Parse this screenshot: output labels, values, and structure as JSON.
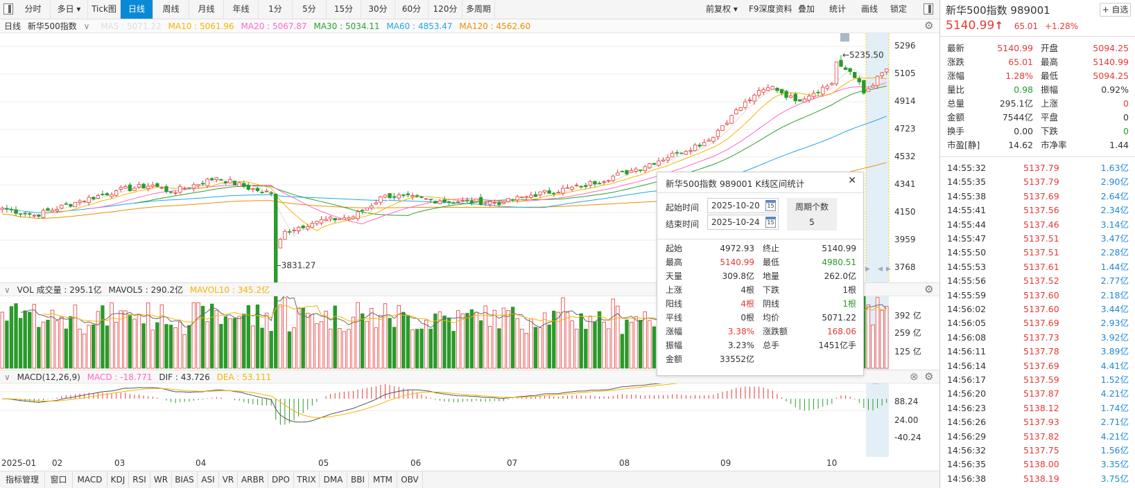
{
  "toolbar": {
    "periods": [
      "分时",
      "多日 ▾",
      "Tick图",
      "日线",
      "周线",
      "月线",
      "年线",
      "1分",
      "5分",
      "15分",
      "30分",
      "60分",
      "120分",
      "多周期"
    ],
    "active": "日线",
    "right": [
      "前复权 ▾",
      "F9深度资料",
      "叠加",
      "统计",
      "画线",
      "锁定"
    ]
  },
  "legend": {
    "period": "日线",
    "index_name": "新华500指数",
    "ma5": "MA5 : 5071.22",
    "ma10": "MA10 : 5061.96",
    "ma20": "MA20 : 5067.87",
    "ma30": "MA30 : 5034.11",
    "ma60": "MA60 : 4853.47",
    "ma120": "MA120 : 4562.60"
  },
  "colors": {
    "up": "#e53935",
    "down": "#2a9a2a",
    "ma5": "#dddddd",
    "ma10": "#f5b400",
    "ma20": "#ff66cc",
    "ma30": "#2aa02a",
    "ma60": "#1ea7e8",
    "ma120": "#f08c00",
    "active_tab": "#0a8ad6",
    "dif": "#555555",
    "dea": "#f5b400"
  },
  "price_axis": [
    "5296",
    "5105",
    "4914",
    "4723",
    "4532",
    "4341",
    "4150",
    "3959",
    "3768"
  ],
  "annotations": {
    "high": "←5235.50",
    "low": "←3831.27"
  },
  "vol_header": {
    "title": "VOL 成交量 : 295.1亿",
    "mavol5": "MAVOL5 : 290.2亿",
    "mavol10": "MAVOL10 : 345.2亿"
  },
  "vol_axis": [
    "392 亿",
    "259 亿",
    "125 亿"
  ],
  "macd_header": {
    "title": "MACD(12,26,9)",
    "macd": "MACD : -18.771",
    "dif": "DIF : 43.726",
    "dea": "DEA : 53.111"
  },
  "macd_axis": [
    "88.24",
    "24.00",
    "-40.24"
  ],
  "date_axis": [
    "2025-01",
    "02",
    "03",
    "04",
    "05",
    "06",
    "07",
    "08",
    "09",
    "10"
  ],
  "bottom_tabs": [
    "指标管理",
    "窗口",
    "MACD",
    "KDJ",
    "RSI",
    "WR",
    "BIAS",
    "ASI",
    "VR",
    "ARBR",
    "DPO",
    "TRIX",
    "DMA",
    "BBI",
    "MTM",
    "OBV"
  ],
  "chart_data": {
    "type": "candlestick",
    "price_range": [
      3768,
      5296
    ],
    "close_path": [
      [
        "2025-01-02",
        4180
      ],
      [
        "2025-01-13",
        4130
      ],
      [
        "2025-01-27",
        4230
      ],
      [
        "2025-02-14",
        4300
      ],
      [
        "2025-02-26",
        4340
      ],
      [
        "2025-03-04",
        4290
      ],
      [
        "2025-03-18",
        4390
      ],
      [
        "2025-03-31",
        4300
      ],
      [
        "2025-04-03",
        4280
      ],
      [
        "2025-04-07",
        3900
      ],
      [
        "2025-04-09",
        4020
      ],
      [
        "2025-04-18",
        4090
      ],
      [
        "2025-04-30",
        4120
      ],
      [
        "2025-05-14",
        4270
      ],
      [
        "2025-05-30",
        4230
      ],
      [
        "2025-06-20",
        4220
      ],
      [
        "2025-06-30",
        4270
      ],
      [
        "2025-07-15",
        4330
      ],
      [
        "2025-07-31",
        4450
      ],
      [
        "2025-08-13",
        4560
      ],
      [
        "2025-08-22",
        4650
      ],
      [
        "2025-08-29",
        4820
      ],
      [
        "2025-09-05",
        4960
      ],
      [
        "2025-09-11",
        5020
      ],
      [
        "2025-09-18",
        4920
      ],
      [
        "2025-09-30",
        5040
      ],
      [
        "2025-10-09",
        5190
      ],
      [
        "2025-10-16",
        5050
      ],
      [
        "2025-10-17",
        4972.93
      ],
      [
        "2025-10-24",
        5140.99
      ]
    ],
    "high": 5235.5,
    "low": 3831.27,
    "selected_range": [
      "2025-10-20",
      "2025-10-24"
    ]
  },
  "quote": {
    "name": "新华500指数",
    "code": "989001",
    "add_watch": "+ 自选",
    "price": "5140.99",
    "arrow": "↑",
    "change": "65.01",
    "pct": "+1.28%",
    "rows": [
      {
        "k": "最新",
        "v": "5140.99",
        "vc": "red",
        "k2": "开盘",
        "v2": "5094.25",
        "v2c": "red"
      },
      {
        "k": "涨跌",
        "v": "65.01",
        "vc": "red",
        "k2": "最高",
        "v2": "5140.99",
        "v2c": "red"
      },
      {
        "k": "涨幅",
        "v": "1.28%",
        "vc": "red",
        "k2": "最低",
        "v2": "5094.25",
        "v2c": "red"
      },
      {
        "k": "量比",
        "v": "0.98",
        "vc": "green",
        "k2": "振幅",
        "v2": "0.92%",
        "v2c": ""
      },
      {
        "k": "总量",
        "v": "295.1亿",
        "vc": "",
        "k2": "上涨",
        "v2": "0",
        "v2c": "red"
      },
      {
        "k": "金额",
        "v": "7544亿",
        "vc": "",
        "k2": "平盘",
        "v2": "0",
        "v2c": ""
      },
      {
        "k": "换手",
        "v": "0.00",
        "vc": "",
        "k2": "下跌",
        "v2": "0",
        "v2c": "green"
      },
      {
        "k": "市盈[静]",
        "v": "14.62",
        "vc": "",
        "k2": "市净率",
        "v2": "1.44",
        "v2c": ""
      }
    ]
  },
  "ticks": [
    [
      "14:55:32",
      "5137.79",
      "1.63亿"
    ],
    [
      "14:55:35",
      "5137.79",
      "2.90亿"
    ],
    [
      "14:55:38",
      "5137.69",
      "2.64亿"
    ],
    [
      "14:55:41",
      "5137.56",
      "2.34亿"
    ],
    [
      "14:55:44",
      "5137.46",
      "3.14亿"
    ],
    [
      "14:55:47",
      "5137.51",
      "3.47亿"
    ],
    [
      "14:55:50",
      "5137.51",
      "2.28亿"
    ],
    [
      "14:55:53",
      "5137.61",
      "1.44亿"
    ],
    [
      "14:55:56",
      "5137.52",
      "2.77亿"
    ],
    [
      "14:55:59",
      "5137.60",
      "2.18亿"
    ],
    [
      "14:56:02",
      "5137.60",
      "3.44亿"
    ],
    [
      "14:56:05",
      "5137.69",
      "2.93亿"
    ],
    [
      "14:56:08",
      "5137.73",
      "3.92亿"
    ],
    [
      "14:56:11",
      "5137.78",
      "3.89亿"
    ],
    [
      "14:56:14",
      "5137.69",
      "4.41亿"
    ],
    [
      "14:56:17",
      "5137.59",
      "1.52亿"
    ],
    [
      "14:56:20",
      "5137.87",
      "4.21亿"
    ],
    [
      "14:56:23",
      "5138.12",
      "1.74亿"
    ],
    [
      "14:56:26",
      "5137.93",
      "2.71亿"
    ],
    [
      "14:56:29",
      "5137.82",
      "4.21亿"
    ],
    [
      "14:56:32",
      "5137.75",
      "1.56亿"
    ],
    [
      "14:56:35",
      "5138.00",
      "3.35亿"
    ],
    [
      "14:56:38",
      "5138.19",
      "3.75亿"
    ]
  ],
  "popup": {
    "title": "新华500指数 989001 K线区间统计",
    "close": "✕",
    "start_label": "起始时间",
    "start": "2025-10-20",
    "end_label": "结束时间",
    "end": "2025-10-24",
    "cal": "15",
    "period_label": "周期个数",
    "period_count": "5",
    "rows": [
      {
        "k": "起始",
        "v": "4972.93",
        "vc": "",
        "k2": "终止",
        "v2": "5140.99",
        "v2c": ""
      },
      {
        "k": "最高",
        "v": "5140.99",
        "vc": "red",
        "k2": "最低",
        "v2": "4980.51",
        "v2c": "green"
      },
      {
        "k": "天量",
        "v": "309.8亿",
        "vc": "",
        "k2": "地量",
        "v2": "262.0亿",
        "v2c": ""
      },
      {
        "k": "上涨",
        "v": "4根",
        "vc": "",
        "k2": "下跌",
        "v2": "1根",
        "v2c": ""
      },
      {
        "k": "阳线",
        "v": "4根",
        "vc": "red",
        "k2": "阴线",
        "v2": "1根",
        "v2c": "green"
      },
      {
        "k": "平线",
        "v": "0根",
        "vc": "",
        "k2": "均价",
        "v2": "5071.22",
        "v2c": ""
      },
      {
        "k": "涨幅",
        "v": "3.38%",
        "vc": "red",
        "k2": "涨跌额",
        "v2": "168.06",
        "v2c": "red"
      },
      {
        "k": "振幅",
        "v": "3.23%",
        "vc": "",
        "k2": "总手",
        "v2": "1451亿手",
        "v2c": ""
      },
      {
        "k": "金额",
        "v": "33552亿",
        "vc": "",
        "k2": "",
        "v2": "",
        "v2c": ""
      }
    ]
  }
}
